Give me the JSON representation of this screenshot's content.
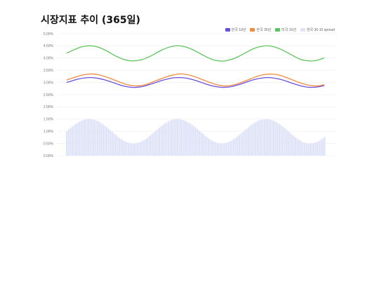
{
  "title": "시장지표 추이 (365일)",
  "legend": [
    {
      "label": "한국 10년",
      "color": "#6b4fd8"
    },
    {
      "label": "한국 30년",
      "color": "#f08a3c"
    },
    {
      "label": "미국 10년",
      "color": "#5cc45c"
    },
    {
      "label": "한국 30-10 spread",
      "color": "#dfe3f7"
    }
  ],
  "chart_data": {
    "type": "line",
    "title": "시장지표 추이 (365일)",
    "xlabel": "",
    "ylabel": "",
    "ylim": [
      0,
      5
    ],
    "y_ticks": [
      "0.00%",
      "0.50%",
      "1.00%",
      "1.50%",
      "2.00%",
      "2.50%",
      "3.00%",
      "3.50%",
      "4.00%",
      "4.50%",
      "5.00%"
    ],
    "grid": true,
    "legend_position": "top-right",
    "days": 365,
    "series": [
      {
        "name": "한국 10년",
        "type": "line",
        "color": "#6b4fd8",
        "values": [
          3.0,
          3.08,
          3.15,
          3.19,
          3.2,
          3.17,
          3.11,
          3.03,
          2.94,
          2.86,
          2.81,
          2.8,
          2.83,
          2.9,
          2.98,
          3.07,
          3.14,
          3.19,
          3.2,
          3.18,
          3.12,
          3.04,
          2.95,
          2.87,
          2.82,
          2.8,
          2.82,
          2.88,
          2.96,
          3.05,
          3.13,
          3.18,
          3.2,
          3.18,
          3.13,
          3.05,
          2.96,
          2.88,
          2.82,
          2.8,
          2.82,
          2.87
        ]
      },
      {
        "name": "한국 30년",
        "type": "line",
        "color": "#f08a3c",
        "values": [
          3.1,
          3.19,
          3.27,
          3.33,
          3.35,
          3.32,
          3.25,
          3.16,
          3.06,
          2.96,
          2.89,
          2.86,
          2.88,
          2.95,
          3.05,
          3.15,
          3.24,
          3.31,
          3.35,
          3.33,
          3.27,
          3.18,
          3.08,
          2.98,
          2.9,
          2.86,
          2.87,
          2.93,
          3.02,
          3.12,
          3.22,
          3.3,
          3.34,
          3.34,
          3.29,
          3.2,
          3.1,
          3.0,
          2.92,
          2.87,
          2.86,
          2.91
        ]
      },
      {
        "name": "미국 10년",
        "type": "line",
        "color": "#5cc45c",
        "values": [
          4.2,
          4.32,
          4.43,
          4.49,
          4.5,
          4.45,
          4.34,
          4.2,
          4.06,
          3.95,
          3.89,
          3.89,
          3.94,
          4.04,
          4.17,
          4.31,
          4.42,
          4.49,
          4.5,
          4.45,
          4.35,
          4.22,
          4.08,
          3.96,
          3.89,
          3.88,
          3.93,
          4.02,
          4.15,
          4.29,
          4.41,
          4.48,
          4.5,
          4.46,
          4.37,
          4.24,
          4.1,
          3.97,
          3.9,
          3.88,
          3.92,
          4.01
        ]
      },
      {
        "name": "한국 30-10 spread",
        "type": "bar",
        "color": "#dfe3f7",
        "values": [
          1.0,
          1.07,
          1.13,
          1.19,
          1.25,
          1.3,
          1.35,
          1.39,
          1.43,
          1.46,
          1.48,
          1.5,
          1.5,
          1.5,
          1.49,
          1.47,
          1.45,
          1.42,
          1.38,
          1.33,
          1.28,
          1.23,
          1.17,
          1.11,
          1.04,
          0.98,
          0.91,
          0.85,
          0.79,
          0.73,
          0.68,
          0.63,
          0.59,
          0.56,
          0.53,
          0.51,
          0.5,
          0.5,
          0.51,
          0.52,
          0.55,
          0.58,
          0.62,
          0.66,
          0.71,
          0.77,
          0.83,
          0.89,
          0.95,
          1.02,
          1.08,
          1.15,
          1.21,
          1.26,
          1.32,
          1.36,
          1.4,
          1.44,
          1.47,
          1.49,
          1.5,
          1.5,
          1.5,
          1.48,
          1.46,
          1.44,
          1.4,
          1.36,
          1.32,
          1.27,
          1.21,
          1.15,
          1.09,
          1.02,
          0.96,
          0.9,
          0.83,
          0.77,
          0.72,
          0.66,
          0.62,
          0.58,
          0.55,
          0.52,
          0.51,
          0.5,
          0.5,
          0.51,
          0.53,
          0.56,
          0.59,
          0.63,
          0.68,
          0.73,
          0.79,
          0.85,
          0.91,
          0.97,
          1.04,
          1.1,
          1.16,
          1.22,
          1.28,
          1.33,
          1.37,
          1.41,
          1.45,
          1.47,
          1.49,
          1.5,
          1.5,
          1.5,
          1.48,
          1.46,
          1.43,
          1.39,
          1.35,
          1.3,
          1.25,
          1.19,
          1.13,
          1.07,
          1.0,
          0.94,
          0.87,
          0.81,
          0.75,
          0.7,
          0.65,
          0.6,
          0.56,
          0.53,
          0.51,
          0.5,
          0.5,
          0.5,
          0.52,
          0.54,
          0.57,
          0.61,
          0.65,
          0.7,
          0.76
        ]
      }
    ]
  }
}
